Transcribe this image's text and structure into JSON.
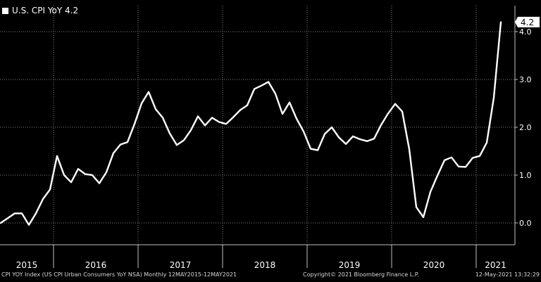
{
  "legend": {
    "label": "U.S. CPI YoY 4.2"
  },
  "footer": {
    "left": "CPI YOY Index (US CPI Urban Consumers YoY NSA)  Monthly 12MAY2015-12MAY2021",
    "middle": "Copyright© 2021 Bloomberg Finance L.P.",
    "right": "12-May-2021 13:32:29"
  },
  "colors": {
    "background": "#000000",
    "line": "#ffffff",
    "grid": "#7f7f7f",
    "text": "#ffffff"
  },
  "chart_data": {
    "type": "line",
    "title": "",
    "xlabel": "",
    "ylabel": "",
    "ylim": [
      -0.3,
      4.4
    ],
    "yticks": [
      0.0,
      1.0,
      2.0,
      3.0,
      4.0
    ],
    "ytick_labels": [
      "0.0",
      "1.0",
      "2.0",
      "3.0",
      "4.0"
    ],
    "x_year_labels": [
      "2015",
      "2016",
      "2017",
      "2018",
      "2019",
      "2020",
      "2021"
    ],
    "grid": true,
    "legend_position": "top-left",
    "last_value_label": "4.2",
    "series": [
      {
        "name": "U.S. CPI YoY",
        "x": [
          "2015-05",
          "2015-06",
          "2015-07",
          "2015-08",
          "2015-09",
          "2015-10",
          "2015-11",
          "2015-12",
          "2016-01",
          "2016-02",
          "2016-03",
          "2016-04",
          "2016-05",
          "2016-06",
          "2016-07",
          "2016-08",
          "2016-09",
          "2016-10",
          "2016-11",
          "2016-12",
          "2017-01",
          "2017-02",
          "2017-03",
          "2017-04",
          "2017-05",
          "2017-06",
          "2017-07",
          "2017-08",
          "2017-09",
          "2017-10",
          "2017-11",
          "2017-12",
          "2018-01",
          "2018-02",
          "2018-03",
          "2018-04",
          "2018-05",
          "2018-06",
          "2018-07",
          "2018-08",
          "2018-09",
          "2018-10",
          "2018-11",
          "2018-12",
          "2019-01",
          "2019-02",
          "2019-03",
          "2019-04",
          "2019-05",
          "2019-06",
          "2019-07",
          "2019-08",
          "2019-09",
          "2019-10",
          "2019-11",
          "2019-12",
          "2020-01",
          "2020-02",
          "2020-03",
          "2020-04",
          "2020-05",
          "2020-06",
          "2020-07",
          "2020-08",
          "2020-09",
          "2020-10",
          "2020-11",
          "2020-12",
          "2021-01",
          "2021-02",
          "2021-03",
          "2021-04"
        ],
        "values": [
          0.0,
          0.1,
          0.2,
          0.2,
          -0.04,
          0.2,
          0.5,
          0.7,
          1.4,
          1.0,
          0.85,
          1.13,
          1.02,
          1.0,
          0.83,
          1.06,
          1.46,
          1.64,
          1.69,
          2.07,
          2.5,
          2.74,
          2.38,
          2.2,
          1.87,
          1.63,
          1.73,
          1.94,
          2.23,
          2.04,
          2.2,
          2.11,
          2.07,
          2.21,
          2.36,
          2.46,
          2.8,
          2.87,
          2.95,
          2.7,
          2.28,
          2.52,
          2.18,
          1.91,
          1.55,
          1.52,
          1.86,
          2.0,
          1.79,
          1.65,
          1.81,
          1.75,
          1.71,
          1.76,
          2.05,
          2.29,
          2.49,
          2.33,
          1.54,
          0.33,
          0.12,
          0.65,
          0.99,
          1.31,
          1.37,
          1.18,
          1.17,
          1.36,
          1.4,
          1.68,
          2.62,
          4.2
        ]
      }
    ]
  }
}
